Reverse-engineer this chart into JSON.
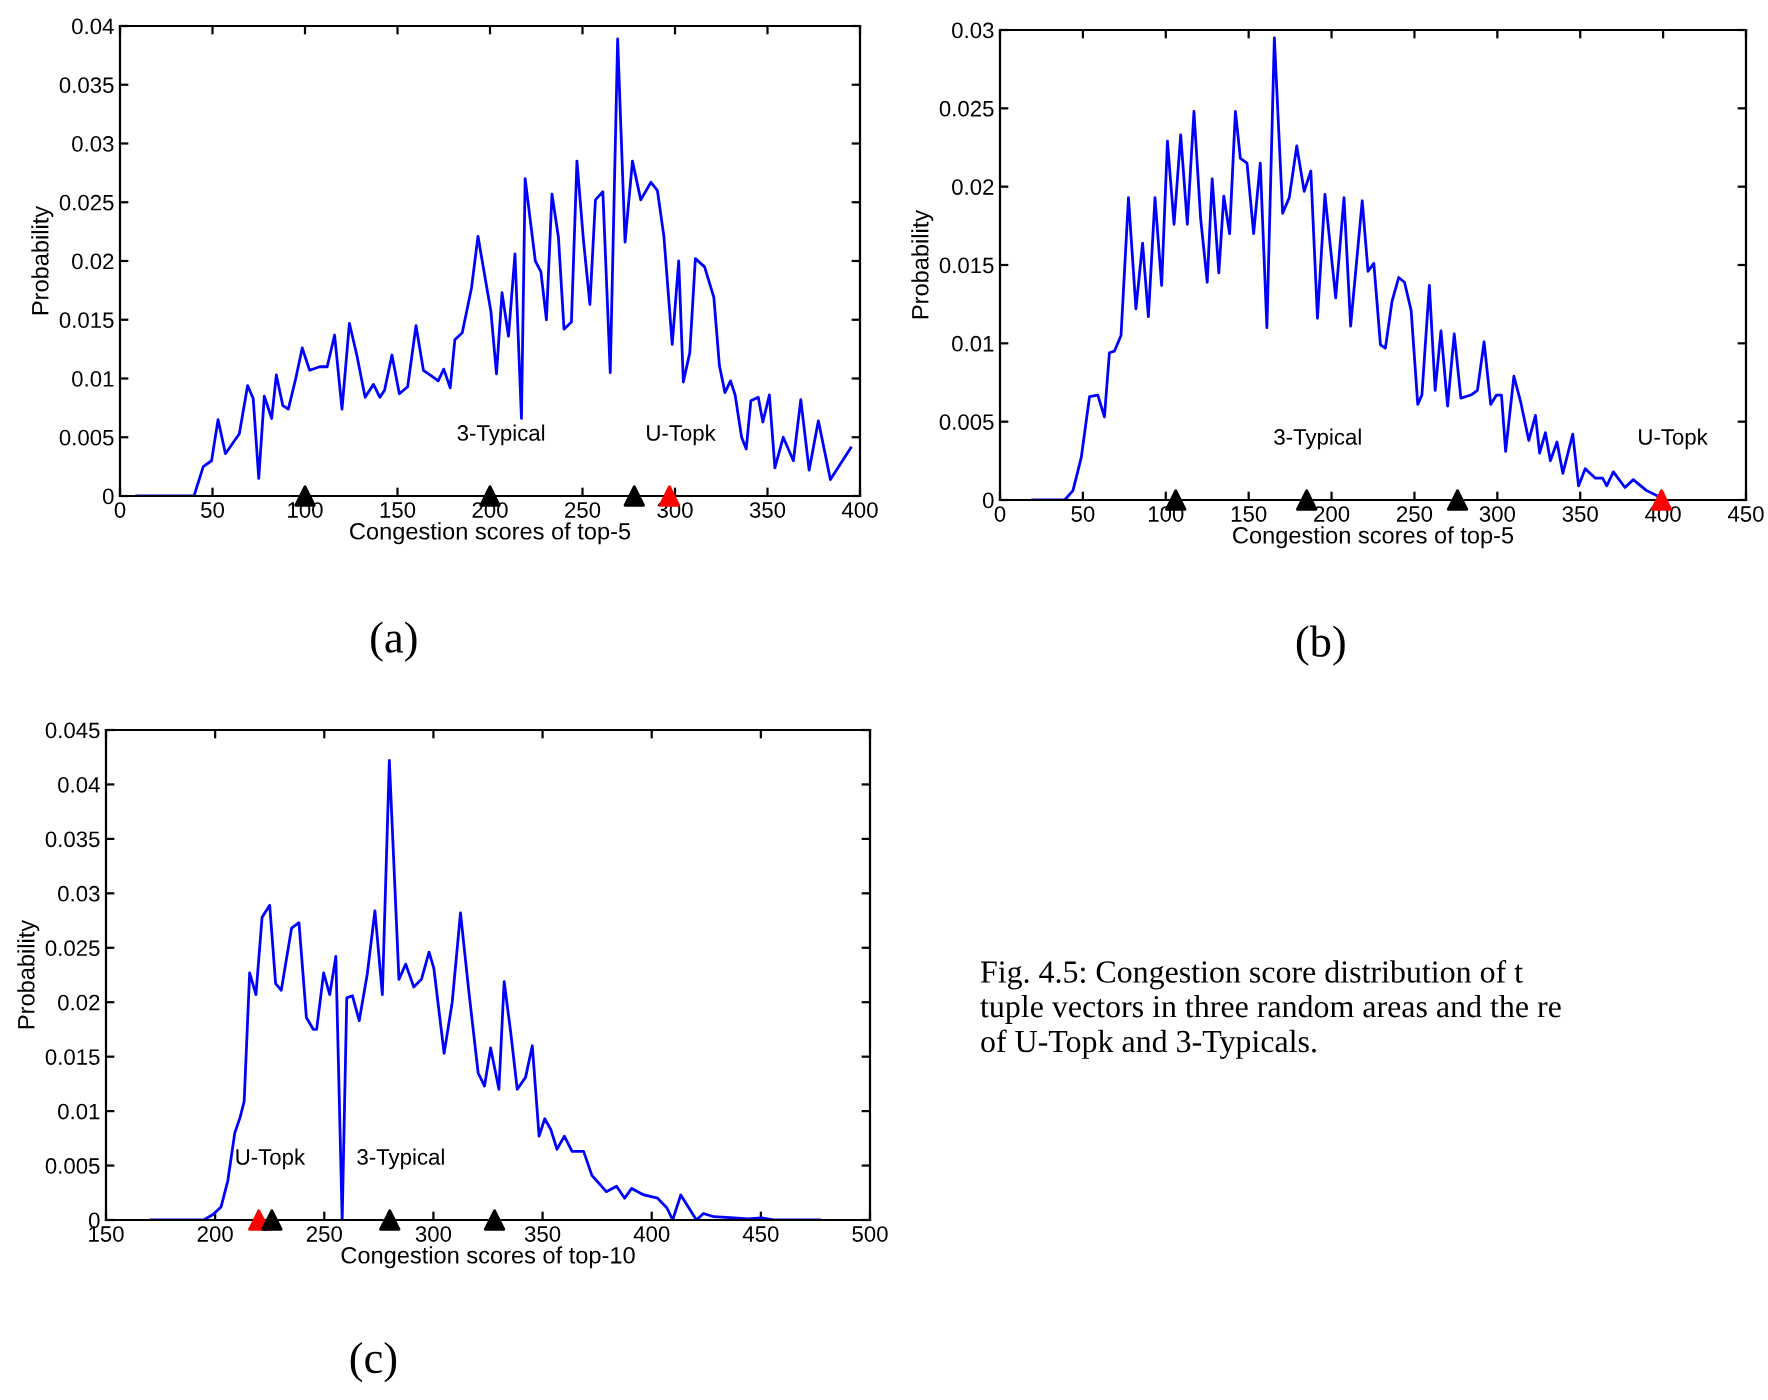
{
  "chart_data": [
    {
      "type": "line",
      "xlabel": "Congestion scores of top-5",
      "ylabel": "Probability",
      "xlim": [
        0,
        400
      ],
      "ylim": [
        0,
        0.04
      ],
      "xticks": [
        0,
        50,
        100,
        150,
        200,
        250,
        300,
        350,
        400
      ],
      "yticks": [
        0,
        0.005,
        0.01,
        0.015,
        0.02,
        0.025,
        0.03,
        0.035,
        0.04
      ],
      "annotations": [
        "(a)",
        {
          "text": "3-Typical",
          "x": 200,
          "y": 0
        },
        {
          "text": "U-Topk",
          "x": 297,
          "y": 0
        }
      ],
      "series": [
        {
          "color": "#0000ff",
          "x": [
            9,
            40,
            45,
            49.5,
            53,
            57,
            64.5,
            69,
            72,
            75,
            78,
            82,
            84.5,
            88,
            91,
            95,
            98.5,
            102.5,
            108,
            112,
            116,
            120,
            124,
            128,
            132.5,
            137,
            140.5,
            143,
            147,
            151,
            155.5,
            160,
            164,
            168.5,
            172,
            175,
            178.5,
            181,
            185,
            190,
            193.5,
            200.5,
            203.5,
            206.5,
            210,
            213.5,
            217,
            219,
            224.5,
            227.5,
            230.5,
            233.5,
            237,
            240,
            244,
            247,
            250.5,
            254,
            257,
            261,
            265,
            269,
            273,
            277,
            281.5,
            287,
            290.5,
            294,
            298.5,
            302,
            304.5,
            308,
            311,
            316,
            321,
            324,
            327,
            330,
            332.5,
            336,
            338.5,
            341,
            345,
            347.5,
            351,
            354,
            358.5,
            364,
            368,
            372.5,
            377.5,
            384,
            395
          ],
          "values": [
            0,
            0,
            0.0025,
            0.003,
            0.0065,
            0.0036,
            0.0053,
            0.0094,
            0.0083,
            0.0015,
            0.0085,
            0.0066,
            0.0103,
            0.0077,
            0.0074,
            0.01,
            0.0126,
            0.0107,
            0.011,
            0.011,
            0.0137,
            0.0074,
            0.0147,
            0.012,
            0.0084,
            0.0095,
            0.0084,
            0.009,
            0.012,
            0.0087,
            0.0093,
            0.0145,
            0.0107,
            0.0102,
            0.0098,
            0.0108,
            0.0092,
            0.0133,
            0.0139,
            0.0177,
            0.0221,
            0.0157,
            0.0104,
            0.0173,
            0.0136,
            0.0206,
            0.0066,
            0.027,
            0.02,
            0.0191,
            0.015,
            0.0257,
            0.022,
            0.0142,
            0.0148,
            0.0285,
            0.0218,
            0.0163,
            0.0252,
            0.0259,
            0.0105,
            0.0389,
            0.0216,
            0.0285,
            0.0252,
            0.0267,
            0.026,
            0.0221,
            0.0129,
            0.02,
            0.0097,
            0.0122,
            0.0202,
            0.0195,
            0.0169,
            0.0111,
            0.0088,
            0.0098,
            0.0086,
            0.005,
            0.004,
            0.0081,
            0.0084,
            0.0063,
            0.0086,
            0.0024,
            0.005,
            0.003,
            0.0082,
            0.0022,
            0.0064,
            0.0014,
            0.0041
          ]
        },
        {
          "type": "scatter",
          "marker": "triangle",
          "color": "#000000",
          "x": [
            100,
            200,
            278
          ],
          "values": [
            0,
            0,
            0
          ]
        },
        {
          "type": "scatter",
          "marker": "triangle",
          "color": "#ff0000",
          "x": [
            297
          ],
          "values": [
            0
          ]
        }
      ]
    },
    {
      "type": "line",
      "xlabel": "Congestion scores of top-5",
      "ylabel": "Probability",
      "xlim": [
        0,
        450
      ],
      "ylim": [
        0,
        0.03
      ],
      "xticks": [
        0,
        50,
        100,
        150,
        200,
        250,
        300,
        350,
        400,
        450
      ],
      "yticks": [
        0,
        0.005,
        0.01,
        0.015,
        0.02,
        0.025,
        0.03
      ],
      "annotations": [
        "(b)",
        {
          "text": "3-Typical",
          "x": 185,
          "y": 0
        },
        {
          "text": "U-Topk",
          "x": 399,
          "y": 0
        }
      ],
      "series": [
        {
          "color": "#0000ff",
          "x": [
            19.7,
            39,
            44,
            49,
            54,
            59,
            63,
            66,
            69,
            73,
            77.5,
            82,
            86,
            89.5,
            93.5,
            97.5,
            101,
            105,
            109,
            113,
            117,
            121,
            125,
            128,
            132,
            135,
            138.5,
            142,
            145,
            149,
            153,
            157,
            161,
            165.5,
            170.5,
            174.5,
            179,
            183.5,
            187.5,
            191.5,
            196,
            202.5,
            207.5,
            211.5,
            218.5,
            222,
            225.5,
            229.5,
            232.5,
            236.5,
            240.5,
            244,
            248,
            252,
            254.5,
            259,
            262.5,
            266,
            270,
            274,
            278,
            284,
            288,
            292,
            296,
            299.5,
            302.5,
            305,
            310,
            314,
            319,
            323,
            325.5,
            329,
            332,
            336,
            339.5,
            345.5,
            349,
            353,
            359,
            363.5,
            366,
            370,
            377,
            382,
            390,
            396
          ],
          "values": [
            0,
            0,
            0.0006,
            0.0027,
            0.0066,
            0.0067,
            0.0053,
            0.0094,
            0.0095,
            0.0105,
            0.0193,
            0.0122,
            0.0164,
            0.0117,
            0.0193,
            0.0137,
            0.0229,
            0.0176,
            0.0233,
            0.0176,
            0.0248,
            0.018,
            0.0139,
            0.0205,
            0.0145,
            0.0194,
            0.017,
            0.0248,
            0.0218,
            0.0215,
            0.017,
            0.0215,
            0.011,
            0.0295,
            0.0183,
            0.0193,
            0.0226,
            0.0197,
            0.021,
            0.0116,
            0.0195,
            0.0129,
            0.0193,
            0.0111,
            0.0191,
            0.0146,
            0.0151,
            0.0099,
            0.0097,
            0.0127,
            0.0142,
            0.0139,
            0.0121,
            0.0061,
            0.0067,
            0.0137,
            0.007,
            0.0108,
            0.006,
            0.0106,
            0.0065,
            0.0067,
            0.007,
            0.0101,
            0.0061,
            0.0067,
            0.0067,
            0.0031,
            0.0079,
            0.0063,
            0.0038,
            0.0054,
            0.003,
            0.0043,
            0.0025,
            0.0037,
            0.0017,
            0.0042,
            0.0009,
            0.002,
            0.0014,
            0.0014,
            0.0009,
            0.0018,
            0.0008,
            0.0013,
            0.0006,
            0.0003
          ]
        },
        {
          "type": "scatter",
          "marker": "triangle",
          "color": "#000000",
          "x": [
            106,
            185,
            276
          ],
          "values": [
            0,
            0,
            0
          ]
        },
        {
          "type": "scatter",
          "marker": "triangle",
          "color": "#ff0000",
          "x": [
            399
          ],
          "values": [
            0
          ]
        }
      ]
    },
    {
      "type": "line",
      "xlabel": "Congestion scores of top-10",
      "ylabel": "Probability",
      "xlim": [
        150,
        500
      ],
      "ylim": [
        0,
        0.045
      ],
      "xticks": [
        150,
        200,
        250,
        300,
        350,
        400,
        450,
        500
      ],
      "yticks": [
        0,
        0.005,
        0.01,
        0.015,
        0.02,
        0.025,
        0.03,
        0.035,
        0.04,
        0.045
      ],
      "annotations": [
        "(c)",
        {
          "text": "U-Topk",
          "x": 220,
          "y": 0
        },
        {
          "text": "3-Typical",
          "x": 280,
          "y": 0
        }
      ],
      "series": [
        {
          "color": "#0000ff",
          "x": [
            170.7,
            194.8,
            199,
            202.7,
            205.8,
            209,
            211.4,
            213.3,
            215.8,
            218.7,
            221.5,
            225,
            227.7,
            230.3,
            235,
            238.4,
            241.8,
            245,
            246.5,
            249.7,
            252.5,
            255.3,
            258.2,
            260.3,
            262.9,
            266,
            269.7,
            273.2,
            276.6,
            279.8,
            284.2,
            287.3,
            291,
            294.5,
            298,
            300.2,
            304.9,
            308.6,
            312.4,
            316.1,
            320.5,
            323.4,
            326.2,
            330,
            332.4,
            335.3,
            338.4,
            342.2,
            345.3,
            348.4,
            351,
            353.8,
            356.6,
            360,
            363.5,
            368.8,
            372.6,
            379.2,
            383.9,
            387.6,
            390.8,
            396.4,
            402.7,
            407,
            409.6,
            413.3,
            420.5,
            423.7,
            428.4,
            437.8,
            444,
            450.3,
            456.6,
            477
          ],
          "values": [
            0,
            0,
            0.0005,
            0.0012,
            0.0036,
            0.008,
            0.0094,
            0.0109,
            0.0227,
            0.0207,
            0.0278,
            0.0289,
            0.0217,
            0.0211,
            0.0268,
            0.0273,
            0.0186,
            0.0175,
            0.0175,
            0.0227,
            0.0207,
            0.0242,
            0,
            0.0204,
            0.0206,
            0.0183,
            0.0226,
            0.0284,
            0.0207,
            0.0422,
            0.0221,
            0.0235,
            0.0214,
            0.0221,
            0.0246,
            0.0231,
            0.0153,
            0.02,
            0.0282,
            0.0212,
            0.0135,
            0.0123,
            0.0158,
            0.012,
            0.0219,
            0.0174,
            0.012,
            0.0131,
            0.016,
            0.0077,
            0.0093,
            0.0083,
            0.0065,
            0.0077,
            0.0063,
            0.0063,
            0.0041,
            0.0026,
            0.0031,
            0.002,
            0.0029,
            0.0023,
            0.002,
            0.0011,
            0,
            0.0023,
            0,
            0.0006,
            0.0003,
            0.0002,
            0.0001,
            0.0002,
            0,
            0
          ]
        },
        {
          "type": "scatter",
          "marker": "triangle",
          "color": "#ff0000",
          "x": [
            220
          ],
          "values": [
            0
          ]
        },
        {
          "type": "scatter",
          "marker": "triangle",
          "color": "#000000",
          "x": [
            226,
            280,
            328
          ],
          "values": [
            0,
            0,
            0
          ]
        }
      ]
    },
    {
      "type": "other",
      "annotations": [
        "Fig. 4.5: Congestion score distribution of t\ntuple vectors in three random areas and the re\nof U-Topk and 3-Typicals."
      ]
    }
  ]
}
